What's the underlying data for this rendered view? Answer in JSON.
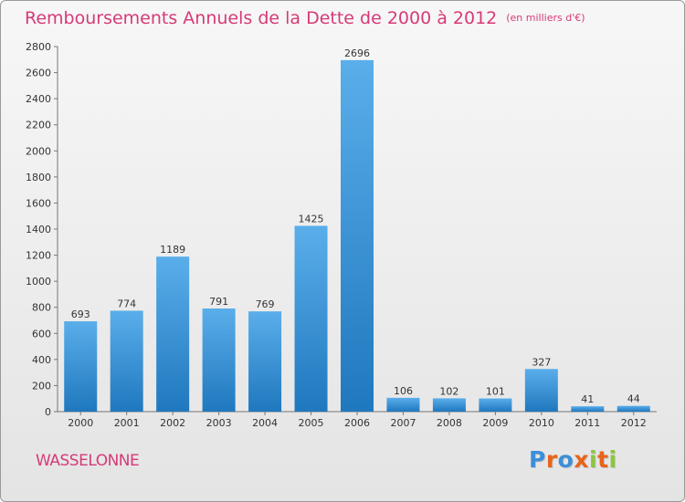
{
  "title": "Remboursements Annuels de la Dette de 2000 à 2012",
  "unit": "(en milliers d'€)",
  "footer": {
    "name": "WASSELONNE"
  },
  "logo": {
    "letters": [
      "P",
      "r",
      "o",
      "x",
      "i",
      "t",
      "i"
    ],
    "colors": [
      "#3b8fd8",
      "#e8641b",
      "#3b8fd8",
      "#e8641b",
      "#8cc63f",
      "#e8641b",
      "#8cc63f"
    ]
  },
  "colors": {
    "bar_light": "#5aaeea",
    "bar_dark": "#1f78be",
    "accent": "#d63a78"
  },
  "chart_data": {
    "type": "bar",
    "title": "Remboursements Annuels de la Dette de 2000 à 2012",
    "categories": [
      "2000",
      "2001",
      "2002",
      "2003",
      "2004",
      "2005",
      "2006",
      "2007",
      "2008",
      "2009",
      "2010",
      "2011",
      "2012"
    ],
    "values": [
      693,
      774,
      1189,
      791,
      769,
      1425,
      2696,
      106,
      102,
      101,
      327,
      41,
      44
    ],
    "ylim": [
      0,
      2800
    ],
    "yticks": [
      0,
      200,
      400,
      600,
      800,
      1000,
      1200,
      1400,
      1600,
      1800,
      2000,
      2200,
      2400,
      2600,
      2800
    ],
    "grid": false,
    "xlabel": "",
    "ylabel": ""
  }
}
